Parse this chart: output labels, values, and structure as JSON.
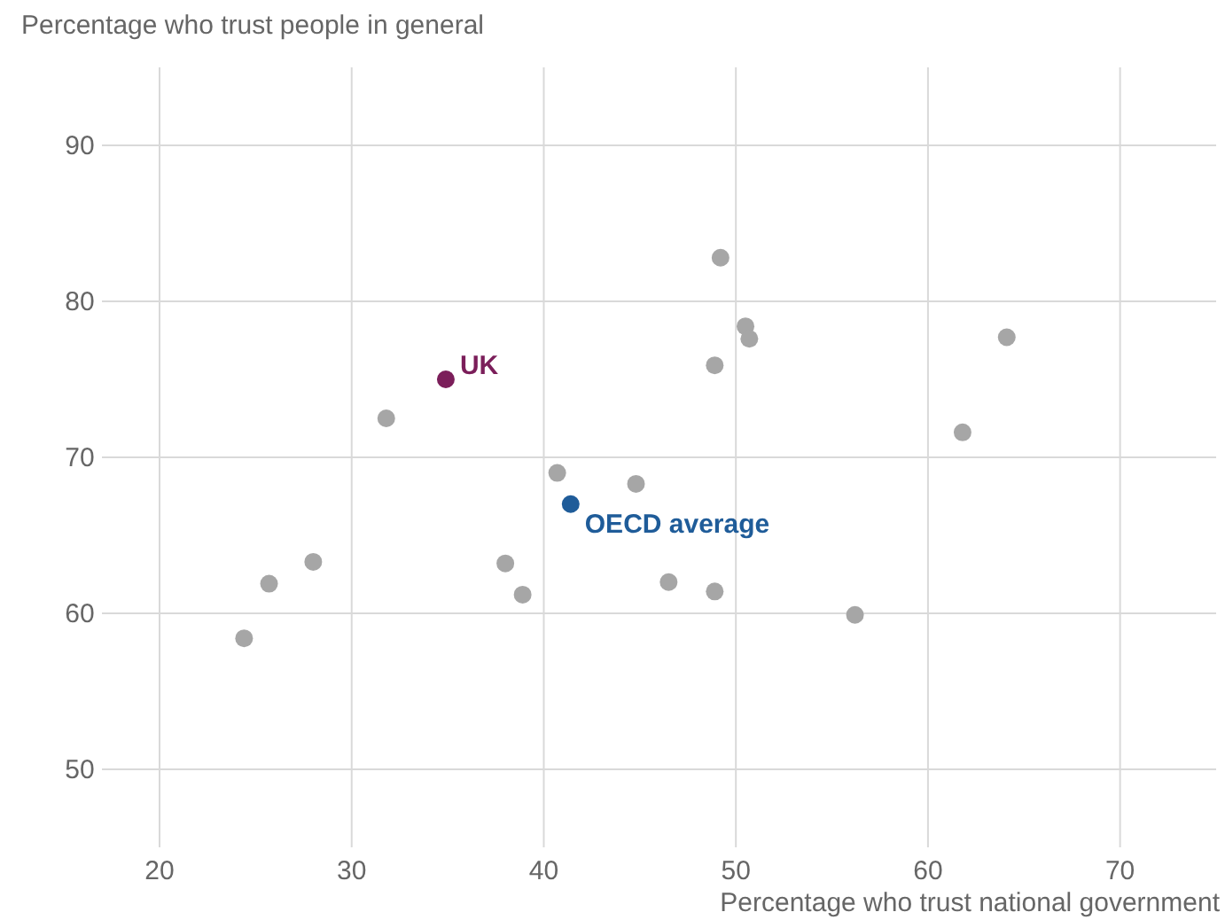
{
  "chart_data": {
    "type": "scatter",
    "xlabel": "Percentage who trust national government",
    "ylabel": "Percentage who trust people in general",
    "xlim": [
      17,
      75
    ],
    "ylim": [
      45,
      95
    ],
    "xticks": [
      20,
      30,
      40,
      50,
      60,
      70
    ],
    "yticks": [
      50,
      60,
      70,
      80,
      90
    ],
    "grid": true,
    "marker": "circle",
    "series": [
      {
        "color": "#a6a6a6",
        "x": [
          24.4,
          25.7,
          28.0,
          31.8,
          38.0,
          38.9,
          40.7,
          44.8,
          46.5,
          48.9,
          48.9,
          49.2,
          50.5,
          50.7,
          56.2,
          61.8,
          64.1
        ],
        "values": [
          58.4,
          61.9,
          63.3,
          72.5,
          63.2,
          61.2,
          69.0,
          68.3,
          62.0,
          61.4,
          75.9,
          82.8,
          78.4,
          77.6,
          59.9,
          71.6,
          77.7
        ]
      },
      {
        "name": "UK",
        "color": "#7b1e5a",
        "x": [
          34.9
        ],
        "values": [
          75.0
        ]
      },
      {
        "name": "OECD average",
        "color": "#1f5c99",
        "x": [
          41.4
        ],
        "values": [
          67.0
        ]
      }
    ]
  }
}
